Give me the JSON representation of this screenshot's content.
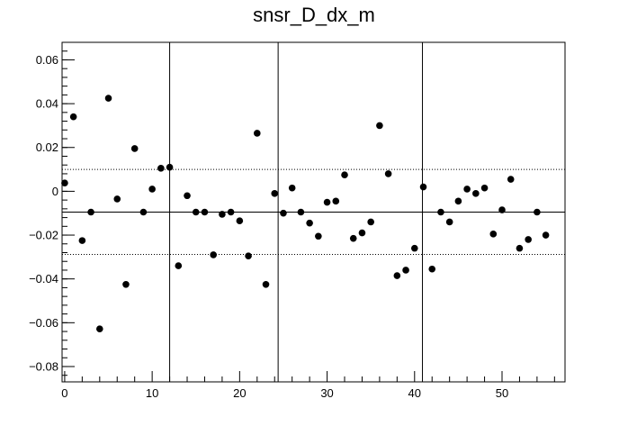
{
  "chart_data": {
    "type": "scatter",
    "title": "snsr_D_dx_m",
    "xlabel": "",
    "ylabel": "",
    "xlim": [
      -0.3,
      57.2
    ],
    "ylim": [
      -0.087,
      0.068
    ],
    "x_ticks": [
      0,
      10,
      20,
      30,
      40,
      50
    ],
    "y_ticks": [
      -0.08,
      -0.06,
      -0.04,
      -0.02,
      0,
      0.02,
      0.04,
      0.06
    ],
    "y_tick_labels": [
      "−0.08",
      "−0.06",
      "−0.04",
      "−0.02",
      "0",
      "0.02",
      "0.04",
      "0.06"
    ],
    "x_tick_labels": [
      "0",
      "10",
      "20",
      "30",
      "40",
      "50"
    ],
    "grid": false,
    "legend": "none",
    "marker_color": "#000000",
    "reference_lines": {
      "mean": -0.0095,
      "upper": 0.01,
      "lower": -0.0288,
      "vertical": [
        12,
        24.4,
        40.9
      ]
    },
    "x": [
      0,
      1,
      2,
      3,
      4,
      5,
      6,
      7,
      8,
      9,
      10,
      11,
      12,
      13,
      14,
      15,
      16,
      17,
      18,
      19,
      20,
      21,
      22,
      23,
      24,
      25,
      26,
      27,
      28,
      29,
      30,
      31,
      32,
      33,
      34,
      35,
      36,
      37,
      38,
      39,
      40,
      41,
      42,
      43,
      44,
      45,
      46,
      47,
      48,
      49,
      50,
      51,
      52,
      53,
      54,
      55
    ],
    "y": [
      0.0038,
      0.034,
      -0.0225,
      -0.0095,
      -0.0628,
      0.0425,
      -0.0035,
      -0.0425,
      0.0195,
      -0.0095,
      0.001,
      0.0105,
      0.011,
      -0.034,
      -0.002,
      -0.0095,
      -0.0095,
      -0.029,
      -0.0105,
      -0.0095,
      -0.0135,
      -0.0295,
      0.0265,
      -0.0425,
      -0.001,
      -0.01,
      0.0015,
      -0.0095,
      -0.0145,
      -0.0205,
      -0.005,
      -0.0045,
      0.0075,
      -0.0215,
      -0.019,
      -0.014,
      0.03,
      0.008,
      -0.0385,
      -0.036,
      -0.026,
      0.002,
      -0.0355,
      -0.0095,
      -0.014,
      -0.0045,
      0.001,
      -0.001,
      0.0015,
      -0.0195,
      -0.0085,
      0.0055,
      -0.026,
      -0.022,
      -0.0095,
      -0.02
    ]
  }
}
